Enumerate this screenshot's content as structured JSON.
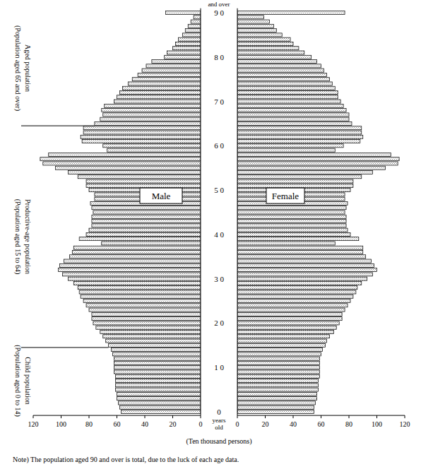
{
  "chart_data": {
    "type": "bar",
    "orientation": "horizontal",
    "categories": [
      "0",
      null,
      null,
      null,
      null,
      null,
      null,
      null,
      null,
      null,
      "1 0",
      null,
      null,
      null,
      null,
      null,
      null,
      null,
      null,
      null,
      "2 0",
      null,
      null,
      null,
      null,
      null,
      null,
      null,
      null,
      null,
      "3 0",
      null,
      null,
      null,
      null,
      null,
      null,
      null,
      null,
      null,
      "4 0",
      null,
      null,
      null,
      null,
      null,
      null,
      null,
      null,
      null,
      "5 0",
      null,
      null,
      null,
      null,
      null,
      null,
      null,
      null,
      null,
      "6 0",
      null,
      null,
      null,
      null,
      null,
      null,
      null,
      null,
      null,
      "7 0",
      null,
      null,
      null,
      null,
      null,
      null,
      null,
      null,
      null,
      "8 0",
      null,
      null,
      null,
      null,
      null,
      null,
      null,
      null,
      null,
      "9 0"
    ],
    "series": [
      {
        "name": "Male",
        "color": "#7f7f7f",
        "values": [
          57,
          58,
          59,
          60,
          60,
          61,
          61,
          61,
          61,
          62,
          62,
          62,
          62,
          63,
          64,
          66,
          68,
          70,
          72,
          75,
          77,
          78,
          78,
          80,
          82,
          84,
          86,
          87,
          88,
          91,
          95,
          99,
          102,
          101,
          98,
          94,
          92,
          91,
          71,
          87,
          82,
          80,
          78,
          78,
          78,
          77,
          78,
          79,
          76,
          76,
          80,
          82,
          82,
          88,
          95,
          104,
          113,
          115,
          109,
          67,
          70,
          85,
          86,
          84,
          84,
          76,
          72,
          70,
          71,
          69,
          62,
          60,
          58,
          56,
          52,
          49,
          45,
          42,
          39,
          35,
          26,
          24,
          20,
          18,
          16,
          13,
          11,
          9,
          7,
          5,
          25
        ]
      },
      {
        "name": "Female",
        "color": "#7f7f7f",
        "values": [
          55,
          55,
          56,
          57,
          57,
          58,
          58,
          58,
          59,
          59,
          59,
          59,
          59,
          60,
          61,
          63,
          64,
          66,
          69,
          71,
          73,
          75,
          75,
          77,
          79,
          81,
          83,
          85,
          86,
          89,
          93,
          97,
          100,
          98,
          96,
          92,
          90,
          90,
          70,
          87,
          81,
          79,
          78,
          78,
          78,
          77,
          78,
          79,
          77,
          77,
          81,
          83,
          83,
          89,
          97,
          106,
          115,
          116,
          110,
          70,
          76,
          88,
          90,
          89,
          89,
          82,
          80,
          80,
          78,
          76,
          74,
          72,
          72,
          70,
          68,
          66,
          64,
          62,
          60,
          57,
          53,
          48,
          44,
          40,
          38,
          32,
          28,
          26,
          23,
          19,
          77
        ]
      }
    ],
    "xlim": [
      0,
      120
    ],
    "xticks": [
      0,
      20,
      40,
      60,
      80,
      100,
      120
    ],
    "x_label": "(Ten thousand persons)",
    "y_label": "years old",
    "annotations": [
      "and over"
    ],
    "note": "Note)  The population aged 90 and over is total, due to the luck of each age data.",
    "age_groups": [
      {
        "label": "Aged population",
        "sublabel": "(Population aged 65 and over)",
        "from": 65,
        "to": 90
      },
      {
        "label": "Productive-age population",
        "sublabel": "(Population aged 15 to 64)",
        "from": 15,
        "to": 64
      },
      {
        "label": "Child population",
        "sublabel": "(Population aged 0 to 14)",
        "from": 0,
        "to": 14
      }
    ]
  }
}
